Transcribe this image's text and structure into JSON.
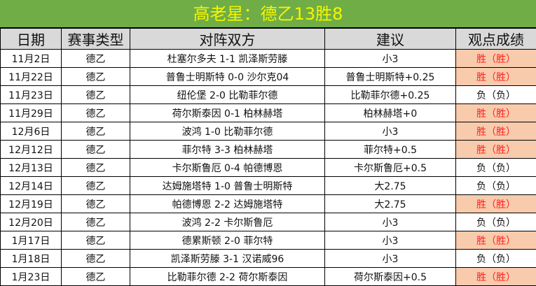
{
  "title": "高老星：德乙13胜8",
  "headers": [
    "日期",
    "赛事类型",
    "对阵双方",
    "建议",
    "观点成绩"
  ],
  "colors": {
    "title_bg": "#70ad47",
    "title_text": "#f5f500",
    "header_bg": "#d9d9d9",
    "win_bg": "#f8cbad",
    "win_text": "#ff2020"
  },
  "rows": [
    {
      "date": "11月2日",
      "league": "德乙",
      "match": "杜塞尔多夫 1-1 凯泽斯劳滕",
      "tip": "小3",
      "result": "胜（胜）",
      "win": true
    },
    {
      "date": "11月22日",
      "league": "德乙",
      "match": "普鲁士明斯特 0-0 沙尔克04",
      "tip": "普鲁士明斯特+0.25",
      "result": "胜（胜）",
      "win": true
    },
    {
      "date": "11月23日",
      "league": "德乙",
      "match": "纽伦堡 2-0 比勒菲尔德",
      "tip": "比勒菲尔德+0.25",
      "result": "负（负）",
      "win": false
    },
    {
      "date": "11月29日",
      "league": "德乙",
      "match": "荷尔斯泰因 0-1 柏林赫塔",
      "tip": "柏林赫塔+0",
      "result": "胜（胜）",
      "win": true
    },
    {
      "date": "12月6日",
      "league": "德乙",
      "match": "波鸿 1-0 比勒菲尔德",
      "tip": "小3",
      "result": "胜（胜）",
      "win": true
    },
    {
      "date": "12月12日",
      "league": "德乙",
      "match": "菲尔特 3-3 柏林赫塔",
      "tip": "菲尔特+0.5",
      "result": "胜（胜）",
      "win": true
    },
    {
      "date": "12月13日",
      "league": "德乙",
      "match": "卡尔斯鲁厄 0-4 帕德博恩",
      "tip": "卡尔斯鲁厄+0.5",
      "result": "负（负）",
      "win": false
    },
    {
      "date": "12月14日",
      "league": "德乙",
      "match": "达姆施塔特 1-0 普鲁士明斯特",
      "tip": "大2.75",
      "result": "负（负）",
      "win": false
    },
    {
      "date": "12月19日",
      "league": "德乙",
      "match": "帕德博恩 2-2 达姆施塔特",
      "tip": "大2.75",
      "result": "胜（胜）",
      "win": true
    },
    {
      "date": "12月20日",
      "league": "德乙",
      "match": "波鸿 2-2 卡尔斯鲁厄",
      "tip": "小3",
      "result": "负（负）",
      "win": false
    },
    {
      "date": "1月17日",
      "league": "德乙",
      "match": "德累斯顿 2-0 菲尔特",
      "tip": "小3",
      "result": "胜（胜）",
      "win": true
    },
    {
      "date": "1月18日",
      "league": "德乙",
      "match": "凯泽斯劳滕 3-1 汉诺威96",
      "tip": "小3",
      "result": "负（负）",
      "win": false
    },
    {
      "date": "1月23日",
      "league": "德乙",
      "match": "比勒菲尔德 2-2 荷尔斯泰因",
      "tip": "荷尔斯泰因+0.5",
      "result": "胜（胜）",
      "win": true
    }
  ]
}
